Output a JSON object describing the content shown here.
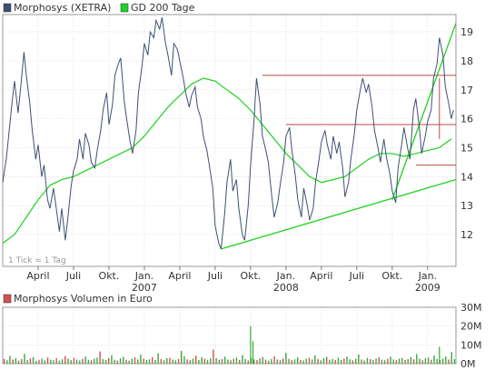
{
  "legend": {
    "price_series": "Morphosys (XETRA)",
    "ma_series": "GD 200 Tage",
    "volume_series": "Morphosys Volumen in Euro"
  },
  "tick_note": "1 Tick = 1 Tag",
  "colors": {
    "price": "#3f4f74",
    "ma200": "#1ed21e",
    "trend": "#1ed21e",
    "resistance": "#b84a4a",
    "grid": "#cfcfcf",
    "vol_up": "#3aa63a",
    "vol_down": "#d05050"
  },
  "chart_data": [
    {
      "type": "line",
      "name": "price-chart",
      "x_tick_labels": [
        "April",
        "Juli",
        "Okt.",
        "Jan.",
        "April",
        "Juli",
        "Okt.",
        "Jan.",
        "April",
        "Juli",
        "Okt.",
        "Jan."
      ],
      "x_year_labels": [
        {
          "tick": "Jan.",
          "year": "2007"
        },
        {
          "tick": "Jan.",
          "year": "2008"
        },
        {
          "tick": "Jan.",
          "year": "2009"
        }
      ],
      "x_month_index": [
        3,
        6,
        9,
        12,
        15,
        18,
        21,
        24,
        27,
        30,
        33,
        36
      ],
      "x_range_months": [
        0,
        38.4
      ],
      "ylim": [
        10.9,
        19.6
      ],
      "y_ticks": [
        12,
        13,
        14,
        15,
        16,
        17,
        18,
        19
      ],
      "grid": true,
      "series": [
        {
          "name": "Morphosys (XETRA)",
          "points": [
            [
              0.0,
              13.8
            ],
            [
              0.3,
              14.6
            ],
            [
              0.5,
              15.4
            ],
            [
              0.8,
              16.6
            ],
            [
              1.0,
              17.3
            ],
            [
              1.3,
              16.2
            ],
            [
              1.5,
              17.0
            ],
            [
              1.8,
              18.3
            ],
            [
              2.0,
              17.5
            ],
            [
              2.3,
              16.5
            ],
            [
              2.5,
              15.6
            ],
            [
              2.8,
              14.6
            ],
            [
              3.0,
              15.1
            ],
            [
              3.3,
              14.0
            ],
            [
              3.5,
              14.4
            ],
            [
              3.8,
              13.2
            ],
            [
              4.0,
              12.9
            ],
            [
              4.3,
              13.6
            ],
            [
              4.5,
              13.0
            ],
            [
              4.8,
              12.1
            ],
            [
              5.0,
              12.9
            ],
            [
              5.3,
              11.8
            ],
            [
              5.5,
              12.5
            ],
            [
              5.8,
              13.7
            ],
            [
              6.0,
              14.2
            ],
            [
              6.3,
              14.6
            ],
            [
              6.5,
              15.3
            ],
            [
              6.8,
              14.6
            ],
            [
              7.0,
              15.5
            ],
            [
              7.3,
              15.1
            ],
            [
              7.5,
              14.5
            ],
            [
              7.8,
              14.3
            ],
            [
              8.0,
              14.9
            ],
            [
              8.3,
              15.6
            ],
            [
              8.5,
              16.3
            ],
            [
              8.8,
              16.9
            ],
            [
              9.0,
              15.8
            ],
            [
              9.3,
              16.5
            ],
            [
              9.5,
              17.5
            ],
            [
              9.8,
              17.9
            ],
            [
              10.0,
              18.1
            ],
            [
              10.3,
              16.6
            ],
            [
              10.5,
              16.0
            ],
            [
              10.8,
              15.2
            ],
            [
              11.0,
              14.8
            ],
            [
              11.3,
              15.6
            ],
            [
              11.5,
              16.9
            ],
            [
              11.8,
              17.8
            ],
            [
              12.0,
              18.6
            ],
            [
              12.3,
              18.2
            ],
            [
              12.5,
              19.0
            ],
            [
              12.8,
              18.8
            ],
            [
              13.0,
              19.4
            ],
            [
              13.3,
              19.1
            ],
            [
              13.5,
              19.5
            ],
            [
              13.8,
              18.6
            ],
            [
              14.0,
              18.2
            ],
            [
              14.3,
              17.5
            ],
            [
              14.5,
              18.6
            ],
            [
              14.8,
              18.4
            ],
            [
              15.0,
              18.0
            ],
            [
              15.3,
              17.4
            ],
            [
              15.5,
              16.9
            ],
            [
              15.8,
              16.4
            ],
            [
              16.0,
              16.8
            ],
            [
              16.3,
              17.1
            ],
            [
              16.5,
              16.4
            ],
            [
              16.8,
              16.0
            ],
            [
              17.0,
              15.4
            ],
            [
              17.3,
              14.9
            ],
            [
              17.5,
              14.4
            ],
            [
              17.8,
              13.6
            ],
            [
              18.0,
              12.3
            ],
            [
              18.3,
              11.7
            ],
            [
              18.5,
              11.5
            ],
            [
              18.8,
              12.7
            ],
            [
              19.0,
              13.8
            ],
            [
              19.3,
              14.6
            ],
            [
              19.5,
              13.5
            ],
            [
              19.8,
              13.9
            ],
            [
              20.0,
              12.9
            ],
            [
              20.3,
              12.0
            ],
            [
              20.5,
              11.8
            ],
            [
              20.8,
              13.0
            ],
            [
              21.0,
              14.4
            ],
            [
              21.3,
              16.0
            ],
            [
              21.5,
              17.4
            ],
            [
              21.8,
              16.5
            ],
            [
              22.0,
              15.4
            ],
            [
              22.3,
              14.9
            ],
            [
              22.5,
              14.5
            ],
            [
              22.8,
              13.3
            ],
            [
              23.0,
              12.6
            ],
            [
              23.3,
              13.1
            ],
            [
              23.5,
              13.7
            ],
            [
              23.8,
              14.5
            ],
            [
              24.0,
              15.4
            ],
            [
              24.3,
              15.7
            ],
            [
              24.5,
              14.9
            ],
            [
              24.8,
              14.0
            ],
            [
              25.0,
              13.2
            ],
            [
              25.3,
              12.6
            ],
            [
              25.5,
              13.6
            ],
            [
              25.8,
              13.0
            ],
            [
              26.0,
              12.5
            ],
            [
              26.3,
              12.9
            ],
            [
              26.5,
              13.8
            ],
            [
              26.8,
              14.6
            ],
            [
              27.0,
              15.2
            ],
            [
              27.3,
              15.6
            ],
            [
              27.5,
              15.1
            ],
            [
              27.8,
              14.6
            ],
            [
              28.0,
              15.4
            ],
            [
              28.3,
              14.8
            ],
            [
              28.5,
              15.2
            ],
            [
              28.8,
              14.3
            ],
            [
              29.0,
              13.3
            ],
            [
              29.3,
              13.8
            ],
            [
              29.5,
              14.6
            ],
            [
              29.8,
              15.5
            ],
            [
              30.0,
              16.3
            ],
            [
              30.3,
              17.0
            ],
            [
              30.5,
              17.4
            ],
            [
              30.8,
              16.9
            ],
            [
              31.0,
              17.2
            ],
            [
              31.3,
              16.4
            ],
            [
              31.5,
              15.6
            ],
            [
              31.8,
              15.0
            ],
            [
              32.0,
              14.5
            ],
            [
              32.3,
              15.3
            ],
            [
              32.5,
              14.7
            ],
            [
              32.8,
              14.1
            ],
            [
              33.0,
              13.5
            ],
            [
              33.3,
              13.1
            ],
            [
              33.5,
              14.3
            ],
            [
              33.8,
              15.1
            ],
            [
              34.0,
              15.7
            ],
            [
              34.3,
              15.0
            ],
            [
              34.5,
              14.6
            ],
            [
              34.8,
              16.3
            ],
            [
              35.0,
              16.7
            ],
            [
              35.3,
              15.7
            ],
            [
              35.5,
              14.8
            ],
            [
              35.8,
              15.4
            ],
            [
              36.0,
              15.9
            ],
            [
              36.3,
              16.3
            ],
            [
              36.5,
              17.4
            ],
            [
              36.8,
              17.9
            ],
            [
              37.0,
              18.8
            ],
            [
              37.3,
              18.2
            ],
            [
              37.5,
              17.1
            ],
            [
              37.8,
              16.5
            ],
            [
              38.0,
              16.0
            ],
            [
              38.2,
              16.3
            ]
          ]
        },
        {
          "name": "GD 200 Tage",
          "points": [
            [
              0.0,
              11.7
            ],
            [
              1.0,
              12.0
            ],
            [
              2.0,
              12.6
            ],
            [
              3.0,
              13.2
            ],
            [
              4.0,
              13.7
            ],
            [
              5.0,
              13.9
            ],
            [
              6.0,
              14.0
            ],
            [
              7.0,
              14.2
            ],
            [
              8.0,
              14.4
            ],
            [
              9.0,
              14.6
            ],
            [
              10.0,
              14.8
            ],
            [
              11.0,
              15.0
            ],
            [
              12.0,
              15.4
            ],
            [
              13.0,
              15.9
            ],
            [
              14.0,
              16.4
            ],
            [
              15.0,
              16.8
            ],
            [
              16.0,
              17.2
            ],
            [
              17.0,
              17.4
            ],
            [
              18.0,
              17.3
            ],
            [
              19.0,
              17.0
            ],
            [
              20.0,
              16.7
            ],
            [
              21.0,
              16.3
            ],
            [
              22.0,
              15.8
            ],
            [
              23.0,
              15.3
            ],
            [
              24.0,
              14.8
            ],
            [
              25.0,
              14.4
            ],
            [
              26.0,
              14.0
            ],
            [
              27.0,
              13.8
            ],
            [
              28.0,
              13.9
            ],
            [
              29.0,
              14.0
            ],
            [
              30.0,
              14.3
            ],
            [
              31.0,
              14.6
            ],
            [
              32.0,
              14.8
            ],
            [
              33.0,
              14.8
            ],
            [
              34.0,
              14.7
            ],
            [
              35.0,
              14.8
            ],
            [
              36.0,
              14.9
            ],
            [
              37.0,
              15.0
            ],
            [
              38.0,
              15.3
            ]
          ]
        }
      ],
      "annotations": [
        {
          "kind": "trend-line",
          "from": [
            18.5,
            11.5
          ],
          "to": [
            38.4,
            13.9
          ]
        },
        {
          "kind": "trend-line",
          "from": [
            33.0,
            13.2
          ],
          "to": [
            38.4,
            19.3
          ]
        },
        {
          "kind": "resistance",
          "from": [
            22.0,
            17.5
          ],
          "to": [
            38.4,
            17.5
          ]
        },
        {
          "kind": "resistance",
          "from": [
            24.0,
            15.8
          ],
          "to": [
            38.4,
            15.8
          ]
        },
        {
          "kind": "resistance",
          "from": [
            35.0,
            14.4
          ],
          "to": [
            38.4,
            14.4
          ]
        },
        {
          "kind": "vertical",
          "from": [
            37.0,
            15.3
          ],
          "to": [
            37.0,
            17.4
          ]
        }
      ]
    },
    {
      "type": "bar",
      "name": "volume-chart",
      "ylim": [
        0,
        30
      ],
      "y_ticks": [
        "0M",
        "10M",
        "20M",
        "30M"
      ],
      "y_tick_values": [
        0,
        10,
        20,
        30
      ],
      "unit": "Mio. Euro",
      "x_range_months": [
        0,
        38.4
      ],
      "series": [
        {
          "name": "Morphosys Volumen in Euro",
          "values_by_week": [
            2.5,
            1.8,
            4.1,
            2.2,
            3.0,
            1.6,
            2.4,
            5.2,
            1.9,
            2.8,
            3.5,
            1.5,
            2.0,
            2.7,
            1.7,
            3.3,
            2.1,
            1.8,
            2.9,
            1.6,
            2.3,
            4.0,
            2.6,
            1.9,
            3.1,
            2.2,
            1.7,
            2.5,
            3.8,
            2.0,
            1.8,
            2.6,
            3.2,
            6.5,
            2.4,
            1.9,
            3.0,
            4.5,
            2.1,
            1.7,
            2.8,
            3.6,
            2.0,
            1.6,
            2.5,
            3.3,
            2.2,
            4.8,
            2.7,
            1.9,
            2.3,
            3.5,
            2.0,
            5.5,
            2.4,
            1.8,
            2.9,
            3.1,
            2.2,
            1.7,
            2.5,
            6.8,
            3.9,
            2.3,
            1.8,
            2.7,
            4.2,
            2.0,
            3.4,
            2.6,
            1.9,
            2.8,
            7.5,
            3.0,
            2.1,
            2.4,
            3.7,
            2.2,
            1.8,
            2.6,
            3.2,
            2.0,
            4.6,
            2.5,
            1.7,
            3.0,
            2.3,
            1.9,
            2.8,
            3.5,
            2.1,
            1.6,
            2.4,
            3.9,
            2.2,
            1.8,
            2.7,
            5.8,
            2.5,
            1.9,
            2.3,
            3.4,
            2.0,
            1.7,
            2.6,
            3.1,
            2.2,
            4.4,
            2.4,
            1.8,
            2.9,
            3.6,
            2.1,
            2.5,
            1.9,
            3.2,
            2.0,
            2.7,
            3.8,
            2.3,
            1.8,
            2.6,
            4.9,
            2.2,
            1.7,
            3.0,
            2.4,
            1.9,
            2.8,
            3.3,
            2.1,
            1.8,
            2.5,
            3.7,
            2.2,
            1.9,
            2.7,
            3.0,
            2.0,
            2.4,
            3.5,
            2.3,
            5.1,
            2.6,
            1.8,
            2.9,
            3.2,
            2.1,
            4.3,
            2.5,
            1.9,
            2.7,
            3.8,
            2.2,
            6.2,
            2.4
          ],
          "spikes": [
            {
              "month": 21.0,
              "value": 20.0
            },
            {
              "month": 21.2,
              "value": 12.0
            },
            {
              "month": 37.0,
              "value": 9.0
            }
          ]
        }
      ]
    }
  ]
}
